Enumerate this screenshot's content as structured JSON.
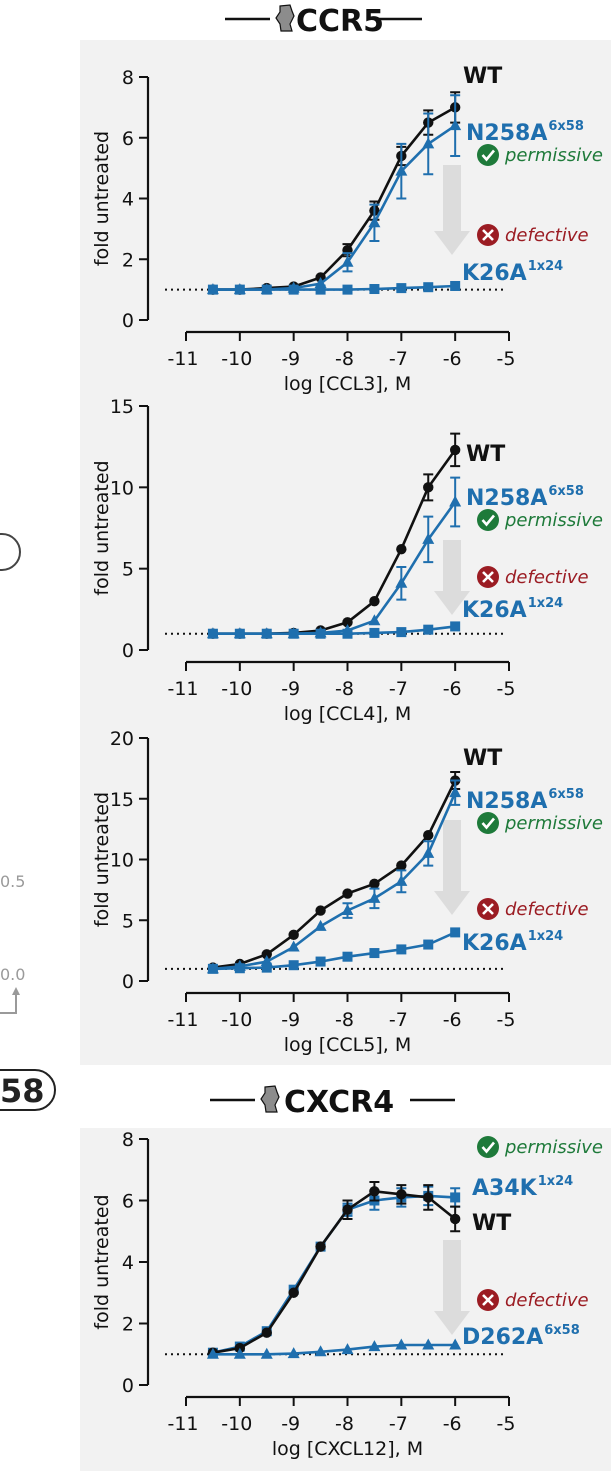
{
  "colors": {
    "wt": "#111111",
    "mutant": "#1f6fae",
    "permissive": "#1e7a3a",
    "defective": "#9b1c23",
    "arrow": "#dcdcdc",
    "panel_bg": "#f2f2f2",
    "edge_grey": "#9a9a9a"
  },
  "headers": {
    "ccr5": "CCR5",
    "cxcr4": "CXCR4"
  },
  "edge_labels": {
    "value_top": "0.5",
    "value_bottom": "0.0",
    "badge": "58"
  },
  "status": {
    "permissive": "permissive",
    "defective": "defective"
  },
  "chart_data": [
    {
      "type": "line",
      "receptor": "CCR5",
      "xlabel": "log [CCL3], M",
      "ylabel": "fold untreated",
      "xlim": [
        -11,
        -5
      ],
      "ylim": [
        0,
        8
      ],
      "xticks": [
        "-11",
        "-10",
        "-9",
        "-8",
        "-7",
        "-6",
        "-5"
      ],
      "yticks": [
        "0",
        "2",
        "4",
        "6",
        "8"
      ],
      "baseline": 1,
      "series": [
        {
          "name": "WT",
          "label": "WT",
          "sup": "",
          "marker": "circle",
          "color": "#111111",
          "x": [
            -10.5,
            -10,
            -9.5,
            -9,
            -8.5,
            -8,
            -7.5,
            -7,
            -6.5,
            -6
          ],
          "y": [
            1.0,
            1.0,
            1.05,
            1.1,
            1.4,
            2.3,
            3.6,
            5.4,
            6.5,
            7.0
          ],
          "err": [
            0,
            0,
            0,
            0,
            0,
            0.2,
            0.3,
            0.3,
            0.4,
            0.5
          ]
        },
        {
          "name": "N258A",
          "label": "N258A",
          "sup": "6x58",
          "marker": "triangle",
          "color": "#1f6fae",
          "x": [
            -10.5,
            -10,
            -9.5,
            -9,
            -8.5,
            -8,
            -7.5,
            -7,
            -6.5,
            -6
          ],
          "y": [
            1.0,
            1.0,
            1.0,
            1.05,
            1.2,
            1.9,
            3.2,
            4.9,
            5.8,
            6.4
          ],
          "err": [
            0,
            0,
            0,
            0,
            0,
            0.3,
            0.6,
            0.9,
            1.0,
            1.0
          ]
        },
        {
          "name": "K26A",
          "label": "K26A",
          "sup": "1x24",
          "marker": "square",
          "color": "#1f6fae",
          "x": [
            -10.5,
            -10,
            -9.5,
            -9,
            -8.5,
            -8,
            -7.5,
            -7,
            -6.5,
            -6
          ],
          "y": [
            1.0,
            1.0,
            1.0,
            1.0,
            1.0,
            1.0,
            1.02,
            1.05,
            1.08,
            1.12
          ],
          "err": [
            0,
            0,
            0,
            0,
            0,
            0,
            0,
            0,
            0,
            0
          ]
        }
      ],
      "annotations": {
        "permissive": "permissive",
        "defective": "defective"
      }
    },
    {
      "type": "line",
      "receptor": "CCR5",
      "xlabel": "log [CCL4], M",
      "ylabel": "fold untreated",
      "xlim": [
        -11,
        -5
      ],
      "ylim": [
        0,
        15
      ],
      "xticks": [
        "-11",
        "-10",
        "-9",
        "-8",
        "-7",
        "-6",
        "-5"
      ],
      "yticks": [
        "0",
        "5",
        "10",
        "15"
      ],
      "baseline": 1,
      "series": [
        {
          "name": "WT",
          "label": "WT",
          "sup": "",
          "marker": "circle",
          "color": "#111111",
          "x": [
            -10.5,
            -10,
            -9.5,
            -9,
            -8.5,
            -8,
            -7.5,
            -7,
            -6.5,
            -6
          ],
          "y": [
            1.0,
            1.0,
            1.0,
            1.05,
            1.2,
            1.7,
            3.0,
            6.2,
            10.0,
            12.3
          ],
          "err": [
            0,
            0,
            0,
            0,
            0,
            0,
            0,
            0,
            0.8,
            1.0
          ]
        },
        {
          "name": "N258A",
          "label": "N258A",
          "sup": "6x58",
          "marker": "triangle",
          "color": "#1f6fae",
          "x": [
            -10.5,
            -10,
            -9.5,
            -9,
            -8.5,
            -8,
            -7.5,
            -7,
            -6.5,
            -6
          ],
          "y": [
            1.0,
            1.0,
            1.0,
            1.0,
            1.05,
            1.2,
            1.8,
            4.1,
            6.8,
            9.1
          ],
          "err": [
            0,
            0,
            0,
            0,
            0,
            0,
            0,
            1.0,
            1.4,
            1.5
          ]
        },
        {
          "name": "K26A",
          "label": "K26A",
          "sup": "1x24",
          "marker": "square",
          "color": "#1f6fae",
          "x": [
            -10.5,
            -10,
            -9.5,
            -9,
            -8.5,
            -8,
            -7.5,
            -7,
            -6.5,
            -6
          ],
          "y": [
            1.0,
            1.0,
            1.0,
            1.0,
            1.0,
            1.0,
            1.05,
            1.1,
            1.25,
            1.45
          ],
          "err": [
            0,
            0,
            0,
            0,
            0,
            0,
            0,
            0,
            0,
            0
          ]
        }
      ],
      "annotations": {
        "permissive": "permissive",
        "defective": "defective"
      }
    },
    {
      "type": "line",
      "receptor": "CCR5",
      "xlabel": "log [CCL5], M",
      "ylabel": "fold untreated",
      "xlim": [
        -11,
        -5
      ],
      "ylim": [
        0,
        20
      ],
      "xticks": [
        "-11",
        "-10",
        "-9",
        "-8",
        "-7",
        "-6",
        "-5"
      ],
      "yticks": [
        "0",
        "5",
        "10",
        "15",
        "20"
      ],
      "baseline": 1,
      "series": [
        {
          "name": "WT",
          "label": "WT",
          "sup": "",
          "marker": "circle",
          "color": "#111111",
          "x": [
            -10.5,
            -10,
            -9.5,
            -9,
            -8.5,
            -8,
            -7.5,
            -7,
            -6.5,
            -6
          ],
          "y": [
            1.1,
            1.4,
            2.2,
            3.8,
            5.8,
            7.2,
            8.0,
            9.5,
            12.0,
            16.5
          ],
          "err": [
            0,
            0,
            0,
            0,
            0,
            0,
            0,
            0,
            0,
            0.7
          ]
        },
        {
          "name": "N258A",
          "label": "N258A",
          "sup": "6x58",
          "marker": "triangle",
          "color": "#1f6fae",
          "x": [
            -10.5,
            -10,
            -9.5,
            -9,
            -8.5,
            -8,
            -7.5,
            -7,
            -6.5,
            -6
          ],
          "y": [
            1.0,
            1.2,
            1.6,
            2.8,
            4.5,
            5.8,
            6.8,
            8.2,
            10.5,
            15.5
          ],
          "err": [
            0,
            0,
            0,
            0,
            0,
            0.6,
            0.8,
            0.9,
            1.0,
            1.0
          ]
        },
        {
          "name": "K26A",
          "label": "K26A",
          "sup": "1x24",
          "marker": "square",
          "color": "#1f6fae",
          "x": [
            -10.5,
            -10,
            -9.5,
            -9,
            -8.5,
            -8,
            -7.5,
            -7,
            -6.5,
            -6
          ],
          "y": [
            1.0,
            1.05,
            1.1,
            1.3,
            1.6,
            2.0,
            2.3,
            2.6,
            3.0,
            4.0
          ],
          "err": [
            0,
            0,
            0,
            0,
            0,
            0,
            0,
            0,
            0,
            0
          ]
        }
      ],
      "annotations": {
        "permissive": "permissive",
        "defective": "defective"
      }
    },
    {
      "type": "line",
      "receptor": "CXCR4",
      "xlabel": "log [CXCL12], M",
      "ylabel": "fold untreated",
      "xlim": [
        -11,
        -5
      ],
      "ylim": [
        0,
        8
      ],
      "xticks": [
        "-11",
        "-10",
        "-9",
        "-8",
        "-7",
        "-6",
        "-5"
      ],
      "yticks": [
        "0",
        "2",
        "4",
        "6",
        "8"
      ],
      "baseline": 1,
      "series": [
        {
          "name": "A34K",
          "label": "A34K",
          "sup": "1x24",
          "marker": "square",
          "color": "#1f6fae",
          "x": [
            -10.5,
            -10,
            -9.5,
            -9,
            -8.5,
            -8,
            -7.5,
            -7,
            -6.5,
            -6
          ],
          "y": [
            1.05,
            1.25,
            1.75,
            3.1,
            4.5,
            5.7,
            6.0,
            6.1,
            6.15,
            6.1
          ],
          "err": [
            0,
            0,
            0,
            0,
            0,
            0.2,
            0.3,
            0.3,
            0.3,
            0.3
          ]
        },
        {
          "name": "WT",
          "label": "WT",
          "sup": "",
          "marker": "circle",
          "color": "#111111",
          "x": [
            -10.5,
            -10,
            -9.5,
            -9,
            -8.5,
            -8,
            -7.5,
            -7,
            -6.5,
            -6
          ],
          "y": [
            1.05,
            1.2,
            1.7,
            3.0,
            4.5,
            5.7,
            6.3,
            6.2,
            6.1,
            5.4
          ],
          "err": [
            0,
            0,
            0,
            0,
            0,
            0.3,
            0.3,
            0.3,
            0.4,
            0.4
          ]
        },
        {
          "name": "D262A",
          "label": "D262A",
          "sup": "6x58",
          "marker": "triangle",
          "color": "#1f6fae",
          "x": [
            -10.5,
            -10,
            -9.5,
            -9,
            -8.5,
            -8,
            -7.5,
            -7,
            -6.5,
            -6
          ],
          "y": [
            1.0,
            1.0,
            1.0,
            1.02,
            1.08,
            1.15,
            1.25,
            1.3,
            1.3,
            1.3
          ],
          "err": [
            0,
            0,
            0,
            0,
            0,
            0,
            0,
            0,
            0,
            0
          ]
        }
      ],
      "annotations": {
        "permissive": "permissive",
        "defective": "defective"
      }
    }
  ]
}
